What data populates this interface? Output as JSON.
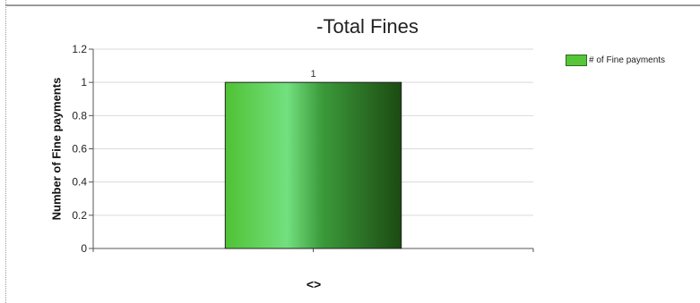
{
  "chart_data": {
    "type": "bar",
    "title": "-Total Fines",
    "xlabel": "",
    "ylabel": "Number of Fine payments",
    "categories": [
      "<>"
    ],
    "series": [
      {
        "name": "# of Fine payments",
        "values": [
          1
        ],
        "color": "#4fc234"
      }
    ],
    "data_labels": [
      "1"
    ],
    "yticks": [
      "0",
      "0.2",
      "0.4",
      "0.6",
      "0.8",
      "1",
      "1.2"
    ],
    "ylim": [
      0,
      1.2
    ],
    "grid": true,
    "legend_position": "top-right"
  }
}
